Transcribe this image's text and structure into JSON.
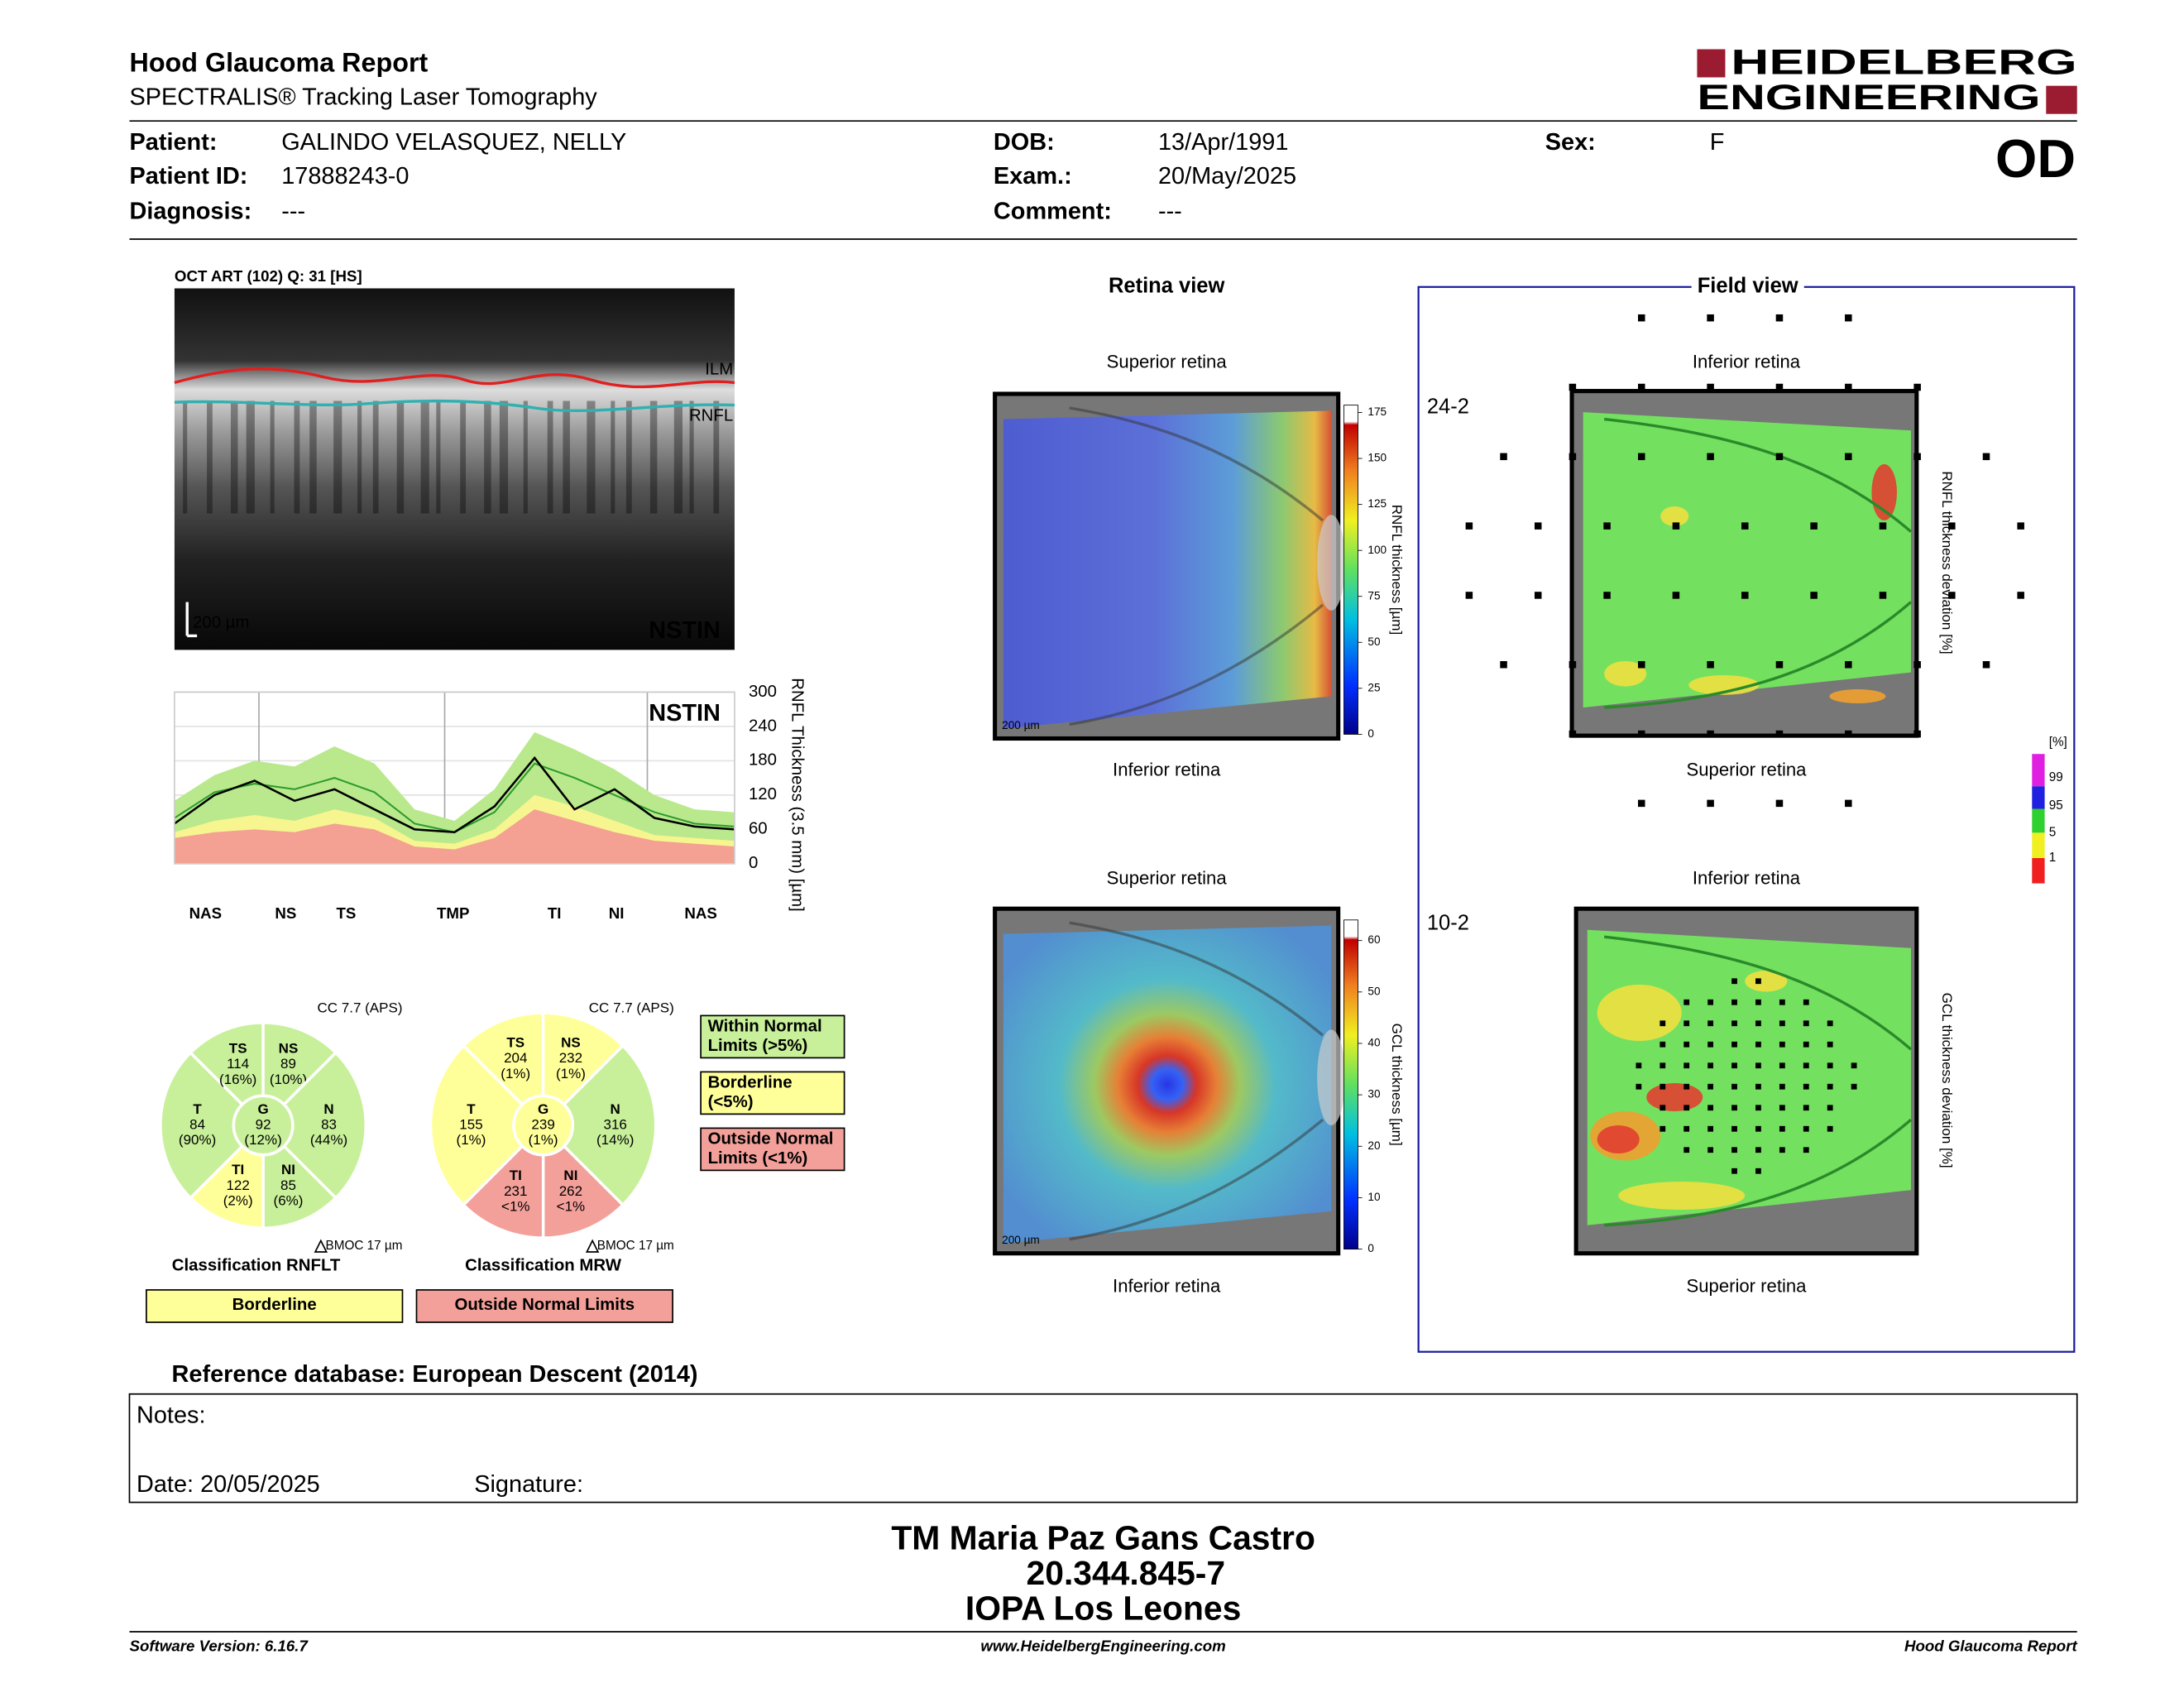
{
  "header": {
    "title": "Hood Glaucoma Report",
    "subtitle": "SPECTRALIS® Tracking Laser Tomography",
    "logo": [
      "HEIDELBERG",
      "ENGINEERING"
    ],
    "eye": "OD"
  },
  "patient": {
    "fields": [
      {
        "label": "Patient:",
        "value": "GALINDO VELASQUEZ, NELLY"
      },
      {
        "label": "Patient ID:",
        "value": "17888243-0"
      },
      {
        "label": "Diagnosis:",
        "value": "---"
      },
      {
        "label": "DOB:",
        "value": "13/Apr/1991"
      },
      {
        "label": "Exam.:",
        "value": "20/May/2025"
      },
      {
        "label": "Comment:",
        "value": "---"
      },
      {
        "label": "Sex:",
        "value": "F"
      }
    ]
  },
  "oct": {
    "title": "OCT ART (102) Q: 31 [HS]",
    "scale": "200 µm",
    "orientation": "NSTIN",
    "layers": [
      "ILM",
      "RNFL"
    ]
  },
  "rnfl_profile": {
    "type": "line",
    "orientation": "NSTIN",
    "y_label": "RNFL Thickness (3.5 mm) [µm]",
    "ylim": [
      0,
      300
    ],
    "yticks": [
      0,
      60,
      120,
      180,
      240,
      300
    ],
    "sector_labels": [
      "NAS",
      "NS",
      "TS",
      "TMP",
      "TI",
      "NI",
      "NAS"
    ],
    "series": [
      {
        "color": "#b9e98c",
        "values": [
          110,
          155,
          180,
          170,
          205,
          175,
          95,
          75,
          130,
          230,
          200,
          165,
          120,
          95,
          90
        ]
      },
      {
        "color": "#f7f590",
        "values": [
          55,
          75,
          85,
          75,
          95,
          80,
          40,
          35,
          60,
          120,
          100,
          75,
          50,
          45,
          40
        ]
      },
      {
        "color": "#f4a092",
        "values": [
          45,
          55,
          60,
          55,
          70,
          60,
          30,
          25,
          45,
          95,
          75,
          55,
          40,
          35,
          30
        ]
      },
      {
        "color": "#2e9a2e",
        "values": [
          80,
          125,
          140,
          130,
          150,
          125,
          70,
          55,
          90,
          175,
          150,
          120,
          90,
          70,
          65
        ]
      },
      {
        "color": "#000000",
        "values": [
          70,
          120,
          145,
          110,
          130,
          95,
          60,
          55,
          100,
          185,
          95,
          130,
          80,
          65,
          60
        ]
      }
    ]
  },
  "classification": [
    {
      "cc": "CC 7.7 (APS)",
      "bmo": "BMOC 17 µm",
      "title": "Classification RNFLT",
      "result": "Borderline",
      "result_color": "#ffff99",
      "sectors": [
        {
          "label": "T",
          "value": 84,
          "pct": "(90%)",
          "color": "#c8f09a"
        },
        {
          "label": "TS",
          "value": 114,
          "pct": "(16%)",
          "color": "#c8f09a"
        },
        {
          "label": "NS",
          "value": 89,
          "pct": "(10%)",
          "color": "#c8f09a"
        },
        {
          "label": "N",
          "value": 83,
          "pct": "(44%)",
          "color": "#c8f09a"
        },
        {
          "label": "NI",
          "value": 85,
          "pct": "(6%)",
          "color": "#c8f09a"
        },
        {
          "label": "TI",
          "value": 122,
          "pct": "(2%)",
          "color": "#ffff99"
        },
        {
          "label": "G",
          "value": 92,
          "pct": "(12%)",
          "color": "#c8f09a"
        }
      ]
    },
    {
      "cc": "CC 7.7 (APS)",
      "bmo": "BMOC 17 µm",
      "title": "Classification MRW",
      "result": "Outside Normal Limits",
      "result_color": "#f4a09a",
      "sectors": [
        {
          "label": "T",
          "value": 155,
          "pct": "(1%)",
          "color": "#ffff99"
        },
        {
          "label": "TS",
          "value": 204,
          "pct": "(1%)",
          "color": "#ffff99"
        },
        {
          "label": "NS",
          "value": 232,
          "pct": "(1%)",
          "color": "#ffff99"
        },
        {
          "label": "N",
          "value": 316,
          "pct": "(14%)",
          "color": "#c8f09a"
        },
        {
          "label": "NI",
          "value": 262,
          "pct": "<1%",
          "color": "#f4a09a"
        },
        {
          "label": "TI",
          "value": 231,
          "pct": "<1%",
          "color": "#f4a09a"
        },
        {
          "label": "G",
          "value": 239,
          "pct": "(1%)",
          "color": "#ffff99"
        }
      ]
    }
  ],
  "legend": [
    {
      "lines": [
        "Within Normal",
        "Limits (>5%)"
      ],
      "color": "#c8f09a"
    },
    {
      "lines": [
        "Borderline",
        "(<5%)"
      ],
      "color": "#ffff99"
    },
    {
      "lines": [
        "Outside Normal",
        "Limits (<1%)"
      ],
      "color": "#f4a09a"
    }
  ],
  "retina": {
    "title": "Retina view",
    "top": "Superior retina",
    "bottom": "Inferior retina",
    "maps": [
      {
        "scale": "200 µm",
        "colorbar_label": "RNFL thickness [µm]",
        "clim": [
          0,
          179
        ],
        "ticks": [
          0,
          25,
          50,
          75,
          100,
          125,
          150,
          175
        ]
      },
      {
        "scale": "200 µm",
        "colorbar_label": "GCL thickness [µm]",
        "clim": [
          0,
          64
        ],
        "ticks": [
          0,
          10,
          20,
          30,
          40,
          50,
          60
        ]
      }
    ]
  },
  "field": {
    "title": "Field view",
    "top": "Inferior retina",
    "bottom": "Superior retina",
    "grids": [
      "24-2",
      "10-2"
    ],
    "map_labels": [
      "RNFL thickness deviation [%]",
      "GCL thickness deviation [%]"
    ],
    "legend_unit": "[%]",
    "legend_ticks": [
      1,
      5,
      95,
      99
    ]
  },
  "reference": "Reference database: European Descent (2014)",
  "notes": {
    "label": "Notes:",
    "date": "Date: 20/05/2025",
    "signature": "Signature:"
  },
  "signature_block": [
    "TM Maria Paz Gans Castro",
    "20.344.845-7",
    "IOPA Los Leones"
  ],
  "footer": {
    "left": "Software Version: 6.16.7",
    "center": "www.HeidelbergEngineering.com",
    "right": "Hood Glaucoma Report"
  }
}
